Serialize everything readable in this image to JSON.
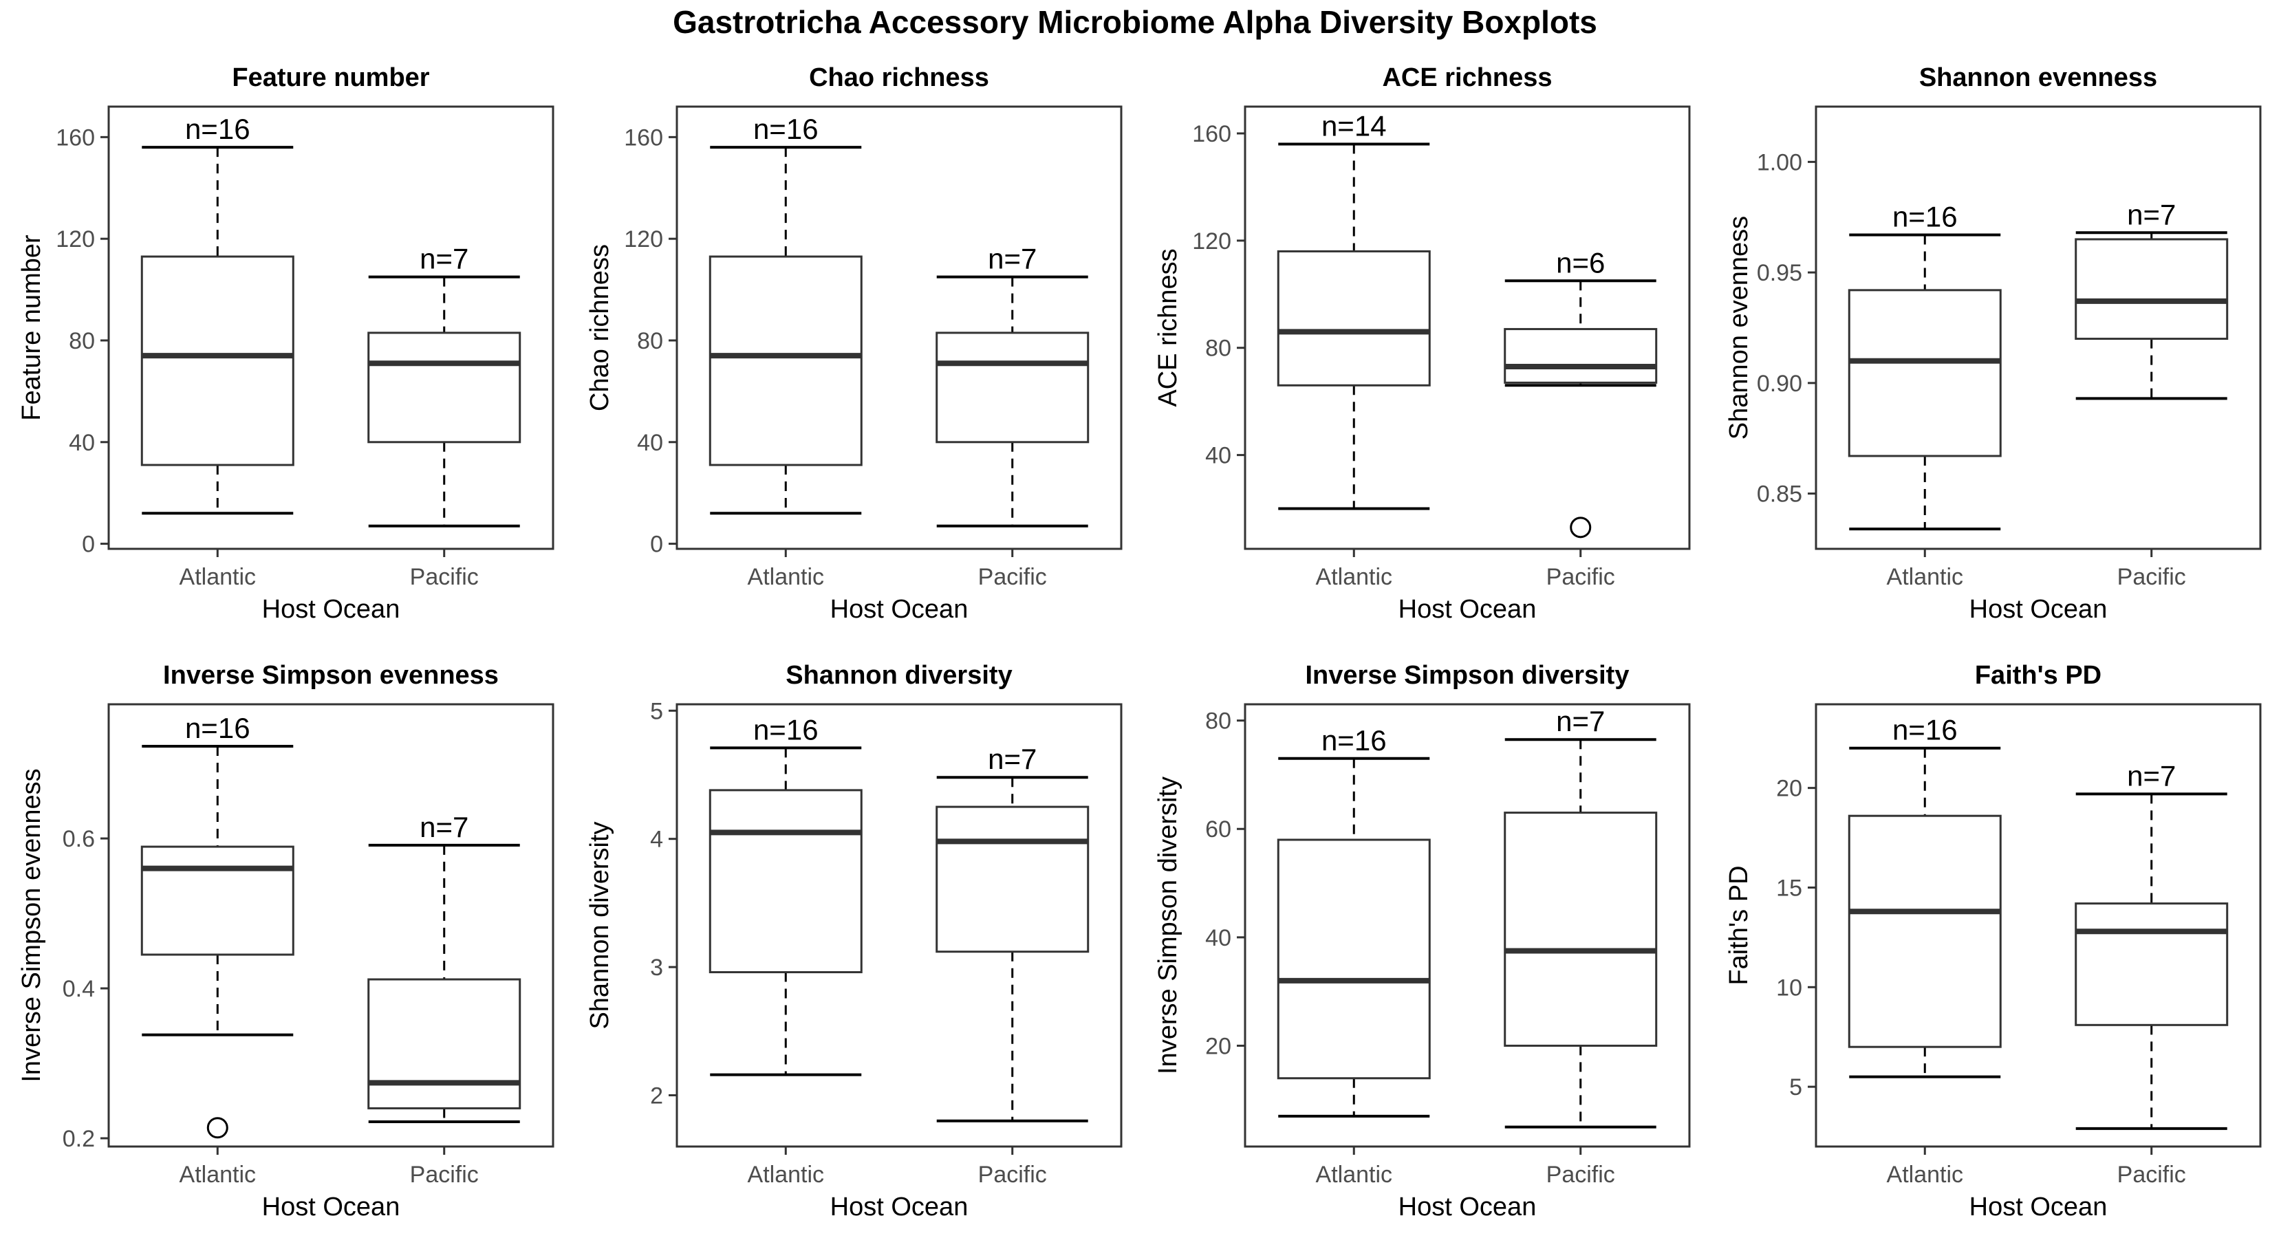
{
  "title": "Gastrotricha Accessory Microbiome Alpha Diversity Boxplots",
  "chart_data": [
    {
      "type": "boxplot",
      "title": "Feature number",
      "xlabel": "Host Ocean",
      "ylabel": "Feature number",
      "categories": [
        "Atlantic",
        "Pacific"
      ],
      "ylim": [
        -2,
        172
      ],
      "yticks": [
        0,
        40,
        80,
        120,
        160
      ],
      "boxes": [
        {
          "whisker_low": 12,
          "q1": 31,
          "median": 74,
          "q3": 113,
          "whisker_high": 156,
          "outliers": [],
          "n_label": "n=16"
        },
        {
          "whisker_low": 7,
          "q1": 40,
          "median": 71,
          "q3": 83,
          "whisker_high": 105,
          "outliers": [],
          "n_label": "n=7"
        }
      ]
    },
    {
      "type": "boxplot",
      "title": "Chao richness",
      "xlabel": "Host Ocean",
      "ylabel": "Chao richness",
      "categories": [
        "Atlantic",
        "Pacific"
      ],
      "ylim": [
        -2,
        172
      ],
      "yticks": [
        0,
        40,
        80,
        120,
        160
      ],
      "boxes": [
        {
          "whisker_low": 12,
          "q1": 31,
          "median": 74,
          "q3": 113,
          "whisker_high": 156,
          "outliers": [],
          "n_label": "n=16"
        },
        {
          "whisker_low": 7,
          "q1": 40,
          "median": 71,
          "q3": 83,
          "whisker_high": 105,
          "outliers": [],
          "n_label": "n=7"
        }
      ]
    },
    {
      "type": "boxplot",
      "title": "ACE richness",
      "xlabel": "Host Ocean",
      "ylabel": "ACE richness",
      "categories": [
        "Atlantic",
        "Pacific"
      ],
      "ylim": [
        5,
        170
      ],
      "yticks": [
        40,
        80,
        120,
        160
      ],
      "boxes": [
        {
          "whisker_low": 20,
          "q1": 66,
          "median": 86,
          "q3": 116,
          "whisker_high": 156,
          "outliers": [],
          "n_label": "n=14"
        },
        {
          "whisker_low": 66,
          "q1": 67,
          "median": 73,
          "q3": 87,
          "whisker_high": 105,
          "outliers": [
            13
          ],
          "n_label": "n=6"
        }
      ]
    },
    {
      "type": "boxplot",
      "title": "Shannon evenness",
      "xlabel": "Host Ocean",
      "ylabel": "Shannon evenness",
      "categories": [
        "Atlantic",
        "Pacific"
      ],
      "ylim": [
        0.825,
        1.025
      ],
      "yticks": [
        0.85,
        0.9,
        0.95,
        1.0
      ],
      "tick_labels": [
        "0.85",
        "0.90",
        "0.95",
        "1.00"
      ],
      "boxes": [
        {
          "whisker_low": 0.834,
          "q1": 0.867,
          "median": 0.91,
          "q3": 0.942,
          "whisker_high": 0.967,
          "outliers": [],
          "n_label": "n=16"
        },
        {
          "whisker_low": 0.893,
          "q1": 0.92,
          "median": 0.937,
          "q3": 0.965,
          "whisker_high": 0.968,
          "outliers": [],
          "n_label": "n=7"
        }
      ]
    },
    {
      "type": "boxplot",
      "title": "Inverse Simpson evenness",
      "xlabel": "Host Ocean",
      "ylabel": "Inverse Simpson evenness",
      "categories": [
        "Atlantic",
        "Pacific"
      ],
      "ylim": [
        0.189,
        0.779
      ],
      "yticks": [
        0.2,
        0.4,
        0.6
      ],
      "tick_labels": [
        "0.2",
        "0.4",
        "0.6"
      ],
      "boxes": [
        {
          "whisker_low": 0.338,
          "q1": 0.445,
          "median": 0.56,
          "q3": 0.589,
          "whisker_high": 0.723,
          "outliers": [
            0.214
          ],
          "n_label": "n=16"
        },
        {
          "whisker_low": 0.222,
          "q1": 0.24,
          "median": 0.274,
          "q3": 0.412,
          "whisker_high": 0.591,
          "outliers": [],
          "n_label": "n=7"
        }
      ]
    },
    {
      "type": "boxplot",
      "title": "Shannon diversity",
      "xlabel": "Host Ocean",
      "ylabel": "Shannon diversity",
      "categories": [
        "Atlantic",
        "Pacific"
      ],
      "ylim": [
        1.6,
        5.05
      ],
      "yticks": [
        2,
        3,
        4,
        5
      ],
      "boxes": [
        {
          "whisker_low": 2.16,
          "q1": 2.96,
          "median": 4.05,
          "q3": 4.38,
          "whisker_high": 4.71,
          "outliers": [],
          "n_label": "n=16"
        },
        {
          "whisker_low": 1.8,
          "q1": 3.12,
          "median": 3.98,
          "q3": 4.25,
          "whisker_high": 4.48,
          "outliers": [],
          "n_label": "n=7"
        }
      ]
    },
    {
      "type": "boxplot",
      "title": "Inverse Simpson diversity",
      "xlabel": "Host Ocean",
      "ylabel": "Inverse Simpson diversity",
      "categories": [
        "Atlantic",
        "Pacific"
      ],
      "ylim": [
        1.4,
        83
      ],
      "yticks": [
        20,
        40,
        60,
        80
      ],
      "boxes": [
        {
          "whisker_low": 7,
          "q1": 14,
          "median": 32,
          "q3": 58,
          "whisker_high": 73,
          "outliers": [],
          "n_label": "n=16"
        },
        {
          "whisker_low": 5,
          "q1": 20,
          "median": 37.5,
          "q3": 63,
          "whisker_high": 76.5,
          "outliers": [],
          "n_label": "n=7"
        }
      ]
    },
    {
      "type": "boxplot",
      "title": "Faith's PD",
      "xlabel": "Host Ocean",
      "ylabel": "Faith's PD",
      "categories": [
        "Atlantic",
        "Pacific"
      ],
      "ylim": [
        2,
        24.2
      ],
      "yticks": [
        5,
        10,
        15,
        20
      ],
      "boxes": [
        {
          "whisker_low": 5.5,
          "q1": 7.0,
          "median": 13.8,
          "q3": 18.6,
          "whisker_high": 22.0,
          "outliers": [],
          "n_label": "n=16"
        },
        {
          "whisker_low": 2.9,
          "q1": 8.1,
          "median": 12.8,
          "q3": 14.2,
          "whisker_high": 19.7,
          "outliers": [],
          "n_label": "n=7"
        }
      ]
    }
  ]
}
